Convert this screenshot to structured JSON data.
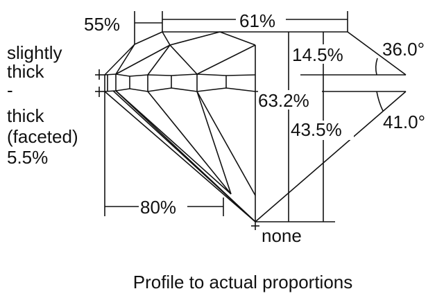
{
  "diagram": {
    "caption": "Profile to actual proportions",
    "girdle_label": [
      "slightly",
      "thick",
      "-",
      "thick",
      "(faceted)",
      "5.5%"
    ],
    "crown_height": "55%",
    "table": "61%",
    "crown_depth": "14.5%",
    "crown_angle": "36.0°",
    "total_depth": "63.2%",
    "pavilion_depth": "43.5%",
    "pavilion_angle": "41.0°",
    "lower_half": "80%",
    "culet": "none"
  }
}
